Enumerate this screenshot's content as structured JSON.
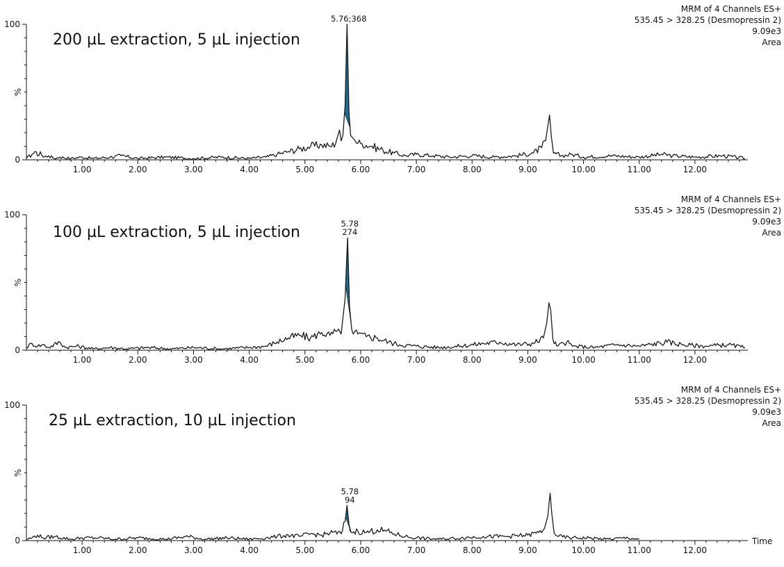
{
  "chart_data": [
    {
      "type": "line",
      "title": "200 µL extraction, 5 µL injection",
      "info_lines": [
        "MRM of 4 Channels ES+",
        "535.45 > 328.25 (Desmopressin 2)",
        "9.09e3",
        "Area"
      ],
      "ylabel": "%",
      "xlabel": "",
      "xlim": [
        0,
        12.95
      ],
      "ylim": [
        0,
        100
      ],
      "x_ticks": [
        "1.00",
        "2.00",
        "3.00",
        "4.00",
        "5.00",
        "6.00",
        "7.00",
        "8.00",
        "9.00",
        "10.00",
        "11.00",
        "12.00"
      ],
      "y_ticks": [
        "0",
        "100"
      ],
      "shaded_color": "#1f6e94",
      "peak_label_lines": [
        "5.76;368"
      ],
      "highlighted_peak": {
        "rt": 5.76,
        "area": 368
      },
      "series": [
        {
          "values": [
            [
              0.0,
              1
            ],
            [
              0.1,
              4
            ],
            [
              0.15,
              6
            ],
            [
              0.2,
              3
            ],
            [
              0.25,
              6
            ],
            [
              0.3,
              2
            ],
            [
              0.4,
              3
            ],
            [
              0.5,
              1
            ],
            [
              0.6,
              2
            ],
            [
              0.8,
              1
            ],
            [
              1.0,
              2
            ],
            [
              1.2,
              1
            ],
            [
              1.5,
              2
            ],
            [
              1.7,
              3
            ],
            [
              2.0,
              1
            ],
            [
              2.5,
              2
            ],
            [
              3.0,
              1
            ],
            [
              3.5,
              2
            ],
            [
              4.0,
              1
            ],
            [
              4.3,
              2
            ],
            [
              4.5,
              4
            ],
            [
              4.7,
              6
            ],
            [
              4.9,
              8
            ],
            [
              5.1,
              10
            ],
            [
              5.3,
              11
            ],
            [
              5.45,
              10
            ],
            [
              5.55,
              12
            ],
            [
              5.62,
              22
            ],
            [
              5.65,
              14
            ],
            [
              5.68,
              18
            ],
            [
              5.72,
              40
            ],
            [
              5.755,
              100
            ],
            [
              5.79,
              35
            ],
            [
              5.82,
              18
            ],
            [
              5.9,
              14
            ],
            [
              6.0,
              12
            ],
            [
              6.2,
              10
            ],
            [
              6.4,
              7
            ],
            [
              6.6,
              5
            ],
            [
              6.8,
              3
            ],
            [
              7.0,
              4
            ],
            [
              7.3,
              3
            ],
            [
              7.6,
              2
            ],
            [
              8.0,
              3
            ],
            [
              8.4,
              2
            ],
            [
              8.8,
              3
            ],
            [
              9.1,
              5
            ],
            [
              9.25,
              9
            ],
            [
              9.32,
              14
            ],
            [
              9.36,
              25
            ],
            [
              9.39,
              33
            ],
            [
              9.42,
              18
            ],
            [
              9.46,
              5
            ],
            [
              9.6,
              3
            ],
            [
              9.8,
              4
            ],
            [
              10.0,
              2
            ],
            [
              10.5,
              3
            ],
            [
              11.0,
              2
            ],
            [
              11.4,
              4
            ],
            [
              11.6,
              3
            ],
            [
              12.0,
              2
            ],
            [
              12.5,
              3
            ],
            [
              12.9,
              1
            ]
          ]
        }
      ]
    },
    {
      "type": "line",
      "title": "100 µL extraction, 5 µL injection",
      "info_lines": [
        "MRM of 4 Channels ES+",
        "535.45 > 328.25 (Desmopressin 2)",
        "9.09e3",
        "Area"
      ],
      "ylabel": "%",
      "xlabel": "",
      "xlim": [
        0,
        12.95
      ],
      "ylim": [
        0,
        100
      ],
      "x_ticks": [
        "1.00",
        "2.00",
        "3.00",
        "4.00",
        "5.00",
        "6.00",
        "7.00",
        "8.00",
        "9.00",
        "10.00",
        "11.00",
        "12.00"
      ],
      "y_ticks": [
        "0",
        "100"
      ],
      "shaded_color": "#1f6e94",
      "peak_label_lines": [
        "5.78",
        "274"
      ],
      "highlighted_peak": {
        "rt": 5.78,
        "area": 274
      },
      "series": [
        {
          "values": [
            [
              0.0,
              2
            ],
            [
              0.1,
              5
            ],
            [
              0.2,
              3
            ],
            [
              0.3,
              4
            ],
            [
              0.4,
              2
            ],
            [
              0.6,
              6
            ],
            [
              0.7,
              2
            ],
            [
              0.9,
              3
            ],
            [
              1.2,
              1
            ],
            [
              1.5,
              2
            ],
            [
              1.8,
              1
            ],
            [
              2.2,
              2
            ],
            [
              2.6,
              1
            ],
            [
              3.0,
              2
            ],
            [
              3.5,
              1
            ],
            [
              4.0,
              2
            ],
            [
              4.3,
              3
            ],
            [
              4.5,
              6
            ],
            [
              4.7,
              9
            ],
            [
              4.9,
              11
            ],
            [
              5.1,
              9
            ],
            [
              5.3,
              13
            ],
            [
              5.45,
              11
            ],
            [
              5.55,
              14
            ],
            [
              5.65,
              12
            ],
            [
              5.72,
              38
            ],
            [
              5.765,
              83
            ],
            [
              5.8,
              32
            ],
            [
              5.84,
              15
            ],
            [
              5.95,
              12
            ],
            [
              6.1,
              10
            ],
            [
              6.3,
              9
            ],
            [
              6.5,
              6
            ],
            [
              6.7,
              4
            ],
            [
              7.0,
              3
            ],
            [
              7.4,
              2
            ],
            [
              7.8,
              3
            ],
            [
              8.2,
              5
            ],
            [
              8.5,
              6
            ],
            [
              8.8,
              4
            ],
            [
              9.1,
              5
            ],
            [
              9.28,
              9
            ],
            [
              9.34,
              20
            ],
            [
              9.38,
              35
            ],
            [
              9.41,
              30
            ],
            [
              9.45,
              8
            ],
            [
              9.52,
              3
            ],
            [
              9.7,
              6
            ],
            [
              9.8,
              3
            ],
            [
              10.2,
              2
            ],
            [
              10.6,
              4
            ],
            [
              11.0,
              3
            ],
            [
              11.5,
              6
            ],
            [
              11.8,
              4
            ],
            [
              12.2,
              3
            ],
            [
              12.6,
              4
            ],
            [
              12.9,
              2
            ]
          ]
        }
      ]
    },
    {
      "type": "line",
      "title": "25 µL extraction, 10 µL injection",
      "info_lines": [
        "MRM of 4 Channels ES+",
        "535.45 > 328.25 (Desmopressin 2)",
        "9.09e3",
        "Area"
      ],
      "ylabel": "%",
      "xlabel": "Time",
      "xlim": [
        0,
        12.95
      ],
      "ylim": [
        0,
        100
      ],
      "x_ticks": [
        "1.00",
        "2.00",
        "3.00",
        "4.00",
        "5.00",
        "6.00",
        "7.00",
        "8.00",
        "9.00",
        "10.00",
        "11.00",
        "12.00"
      ],
      "y_ticks": [
        "0",
        "100"
      ],
      "shaded_color": "#1f6e94",
      "peak_label_lines": [
        "5.78",
        "94"
      ],
      "highlighted_peak": {
        "rt": 5.78,
        "area": 94
      },
      "series": [
        {
          "values": [
            [
              0.0,
              1
            ],
            [
              0.1,
              2
            ],
            [
              0.2,
              4
            ],
            [
              0.3,
              2
            ],
            [
              0.5,
              3
            ],
            [
              0.8,
              1
            ],
            [
              1.0,
              2
            ],
            [
              1.3,
              2
            ],
            [
              1.6,
              1
            ],
            [
              2.0,
              2
            ],
            [
              2.5,
              1
            ],
            [
              2.9,
              3
            ],
            [
              3.2,
              1
            ],
            [
              3.6,
              2
            ],
            [
              4.0,
              1
            ],
            [
              4.3,
              2
            ],
            [
              4.5,
              3
            ],
            [
              4.7,
              4
            ],
            [
              4.9,
              3
            ],
            [
              5.1,
              5
            ],
            [
              5.3,
              4
            ],
            [
              5.5,
              6
            ],
            [
              5.65,
              5
            ],
            [
              5.72,
              14
            ],
            [
              5.755,
              26
            ],
            [
              5.79,
              12
            ],
            [
              5.83,
              6
            ],
            [
              5.95,
              7
            ],
            [
              6.1,
              6
            ],
            [
              6.3,
              8
            ],
            [
              6.45,
              7
            ],
            [
              6.6,
              5
            ],
            [
              6.8,
              3
            ],
            [
              7.0,
              2
            ],
            [
              7.4,
              1
            ],
            [
              7.8,
              2
            ],
            [
              8.2,
              3
            ],
            [
              8.6,
              3
            ],
            [
              9.0,
              4
            ],
            [
              9.2,
              6
            ],
            [
              9.3,
              9
            ],
            [
              9.36,
              18
            ],
            [
              9.4,
              35
            ],
            [
              9.43,
              20
            ],
            [
              9.47,
              6
            ],
            [
              9.55,
              3
            ],
            [
              9.8,
              2
            ],
            [
              10.1,
              2
            ],
            [
              10.4,
              1
            ],
            [
              10.8,
              2
            ],
            [
              11.0,
              1
            ]
          ]
        }
      ]
    }
  ]
}
